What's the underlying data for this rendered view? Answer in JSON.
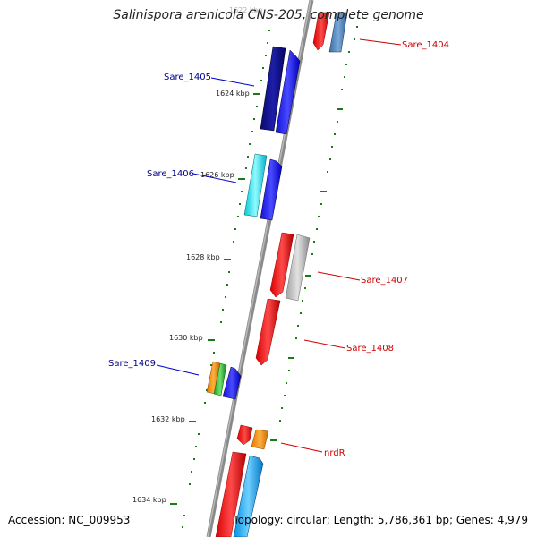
{
  "title": "Salinispora arenicola CNS-205, complete genome",
  "footer": {
    "accession": "Accession: NC_009953",
    "topology": "Topology: circular; Length: 5,786,361 bp; Genes: 4,979"
  },
  "kbp_labels": [
    "1622 kbp",
    "1624 kbp",
    "1626 kbp",
    "1628 kbp",
    "1630 kbp",
    "1632 kbp",
    "1634 kbp"
  ],
  "gene_labels": {
    "left": [
      "Sare_1405",
      "Sare_1406",
      "Sare_1409"
    ],
    "right": [
      "Sare_1404",
      "Sare_1407",
      "Sare_1408",
      "nrdR"
    ]
  },
  "colors": {
    "left_label": "#00008b",
    "right_label": "#cc0000",
    "backbone": "#808080",
    "tick": "#1a7a1a"
  }
}
